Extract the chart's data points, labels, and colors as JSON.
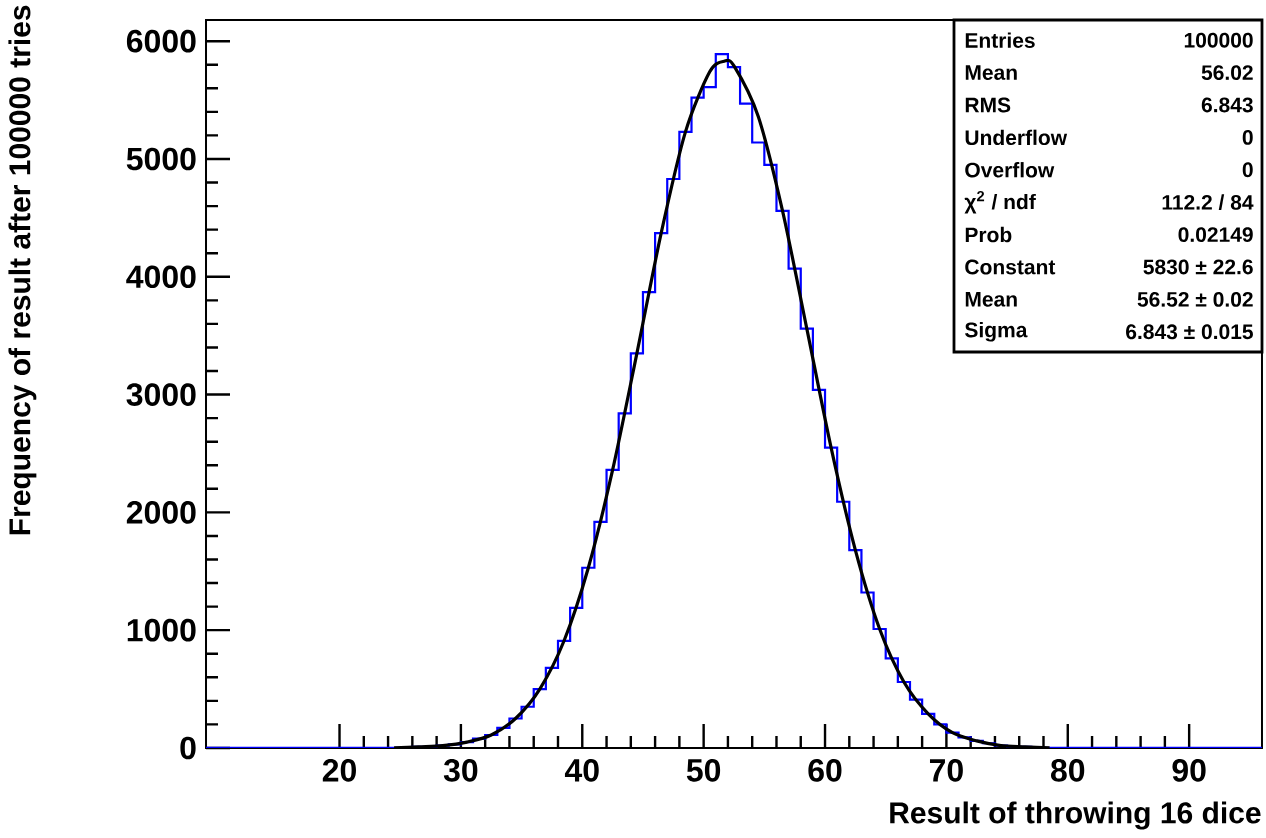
{
  "chart_data": {
    "type": "histogram",
    "xlabel": "Result of throwing 16 dice",
    "ylabel": "Frequency of result after 100000 tries",
    "bins": [
      9,
      10,
      11,
      12,
      13,
      14,
      15,
      16,
      17,
      18,
      19,
      20,
      21,
      22,
      23,
      24,
      25,
      26,
      27,
      28,
      29,
      30,
      31,
      32,
      33,
      34,
      35,
      36,
      37,
      38,
      39,
      40,
      41,
      42,
      43,
      44,
      45,
      46,
      47,
      48,
      49,
      50,
      51,
      52,
      53,
      54,
      55,
      56,
      57,
      58,
      59,
      60,
      61,
      62,
      63,
      64,
      65,
      66,
      67,
      68,
      69,
      70,
      71,
      72,
      73,
      74,
      75,
      76,
      77,
      78,
      79,
      80,
      81,
      82,
      83,
      84,
      85,
      86,
      87,
      88,
      89,
      90,
      91,
      92,
      93,
      94,
      95,
      96
    ],
    "series": [
      {
        "color": "#0000ff",
        "values": [
          0,
          0,
          0,
          0,
          0,
          0,
          0,
          0,
          0,
          0,
          0,
          0,
          0,
          0,
          0,
          0,
          0,
          10,
          10,
          20,
          30,
          50,
          80,
          110,
          170,
          250,
          350,
          500,
          680,
          910,
          1190,
          1530,
          1920,
          2360,
          2840,
          3350,
          3870,
          4370,
          4830,
          5230,
          5520,
          5610,
          5890,
          5780,
          5470,
          5140,
          4950,
          4560,
          4070,
          3560,
          3040,
          2550,
          2090,
          1680,
          1320,
          1010,
          760,
          560,
          410,
          290,
          200,
          130,
          90,
          60,
          40,
          20,
          10,
          10,
          0,
          0,
          0,
          0,
          0,
          0,
          0,
          0,
          0,
          0,
          0,
          0,
          0,
          0,
          0,
          0,
          0,
          0,
          0
        ]
      },
      {
        "type": "line",
        "color": "#000000",
        "x": [
          24.5,
          26.5,
          28.5,
          30.5,
          32.5,
          34.5,
          36.5,
          38.5,
          40.5,
          42.5,
          44.5,
          46.5,
          48.5,
          50.5,
          51.7,
          52.5,
          54.5,
          56.5,
          58.5,
          60.5,
          62.5,
          64.5,
          66.5,
          68.5,
          70.5,
          72.5,
          74.5,
          76.5,
          78.5
        ],
        "values": [
          0,
          10,
          20,
          50,
          110,
          250,
          500,
          910,
          1530,
          2360,
          3350,
          4370,
          5230,
          5740,
          5830,
          5790,
          5360,
          4560,
          3560,
          2550,
          1680,
          1010,
          560,
          290,
          130,
          60,
          20,
          10,
          0
        ]
      }
    ],
    "xlim": [
      9,
      96
    ],
    "xticks": [
      20,
      30,
      40,
      50,
      60,
      70,
      80,
      90
    ],
    "ylim": [
      0,
      6180
    ],
    "yticks": [
      0,
      1000,
      2000,
      3000,
      4000,
      5000,
      6000
    ],
    "grid": false,
    "annotations": [
      "Entries",
      "100000",
      "Mean",
      "56.02",
      "RMS",
      "6.843",
      "Underflow",
      "0",
      "Overflow",
      "0",
      "χ$^{2}$ / ndf",
      "112.2 / 84",
      "Prob",
      "0.02149",
      "Constant",
      "5830 ± 22.6",
      "Mean",
      "56.52 ± 0.02",
      "Sigma",
      "6.843 ± 0.015"
    ]
  }
}
